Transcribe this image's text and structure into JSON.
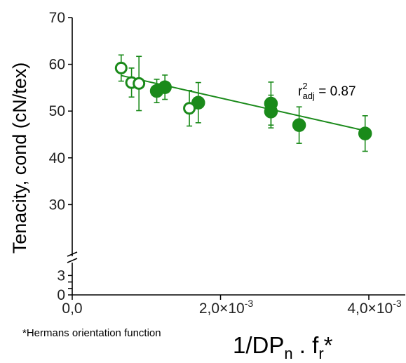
{
  "chart_data": {
    "type": "scatter",
    "title": "",
    "ylabel": "Tenacity, cond (cN/tex)",
    "xlabel_parts": {
      "base1": "1/DP",
      "sub1": "n",
      "mid": " . f",
      "sub2": "r",
      "tail": "*"
    },
    "ylim_upper": [
      20,
      70
    ],
    "ylim_lower": [
      0,
      5
    ],
    "xlim": [
      0,
      0.0045
    ],
    "y_ticks_upper": [
      {
        "value": 30,
        "label": "30"
      },
      {
        "value": 40,
        "label": "40"
      },
      {
        "value": 50,
        "label": "50"
      },
      {
        "value": 60,
        "label": "60"
      },
      {
        "value": 70,
        "label": "70"
      }
    ],
    "y_ticks_lower": [
      {
        "value": 0,
        "label": "0"
      },
      {
        "value": 1,
        "label": ""
      },
      {
        "value": 2,
        "label": ""
      },
      {
        "value": 3,
        "label": "3"
      }
    ],
    "x_ticks": [
      {
        "value": 0,
        "label": "0,0"
      },
      {
        "value": 0.002,
        "label": "2,0×10",
        "exp": "-3"
      },
      {
        "value": 0.004,
        "label": "4,0×10",
        "exp": "-3"
      }
    ],
    "series": [
      {
        "marker": "filled",
        "color": "#1a8a1a",
        "points": [
          {
            "x": 0.00114,
            "y": 54.3,
            "err": 2.5
          },
          {
            "x": 0.00125,
            "y": 55.1,
            "err": 2.6
          },
          {
            "x": 0.0017,
            "y": 51.8,
            "err": 4.3
          },
          {
            "x": 0.00268,
            "y": 51.6,
            "err": 4.6
          },
          {
            "x": 0.00268,
            "y": 49.9,
            "err": 3.5
          },
          {
            "x": 0.00306,
            "y": 47.0,
            "err": 3.9
          },
          {
            "x": 0.00395,
            "y": 45.2,
            "err": 3.8
          }
        ]
      },
      {
        "marker": "open",
        "color": "#1a8a1a",
        "points": [
          {
            "x": 0.00066,
            "y": 59.2,
            "err": 2.8
          },
          {
            "x": 0.0008,
            "y": 56.1,
            "err": 3.1
          },
          {
            "x": 0.0009,
            "y": 55.9,
            "err": 5.8
          },
          {
            "x": 0.00158,
            "y": 50.6,
            "err": 3.8
          }
        ]
      }
    ],
    "fit_line": {
      "x": [
        0.00066,
        0.00395
      ],
      "y": [
        57.6,
        45.8
      ],
      "color": "#1a8a1a"
    },
    "annotation": {
      "base": "r",
      "sup": "2",
      "sub": "adj",
      "rest": " = 0.87"
    },
    "footnote": "*Hermans orientation function",
    "grid": false,
    "legend": "none"
  }
}
